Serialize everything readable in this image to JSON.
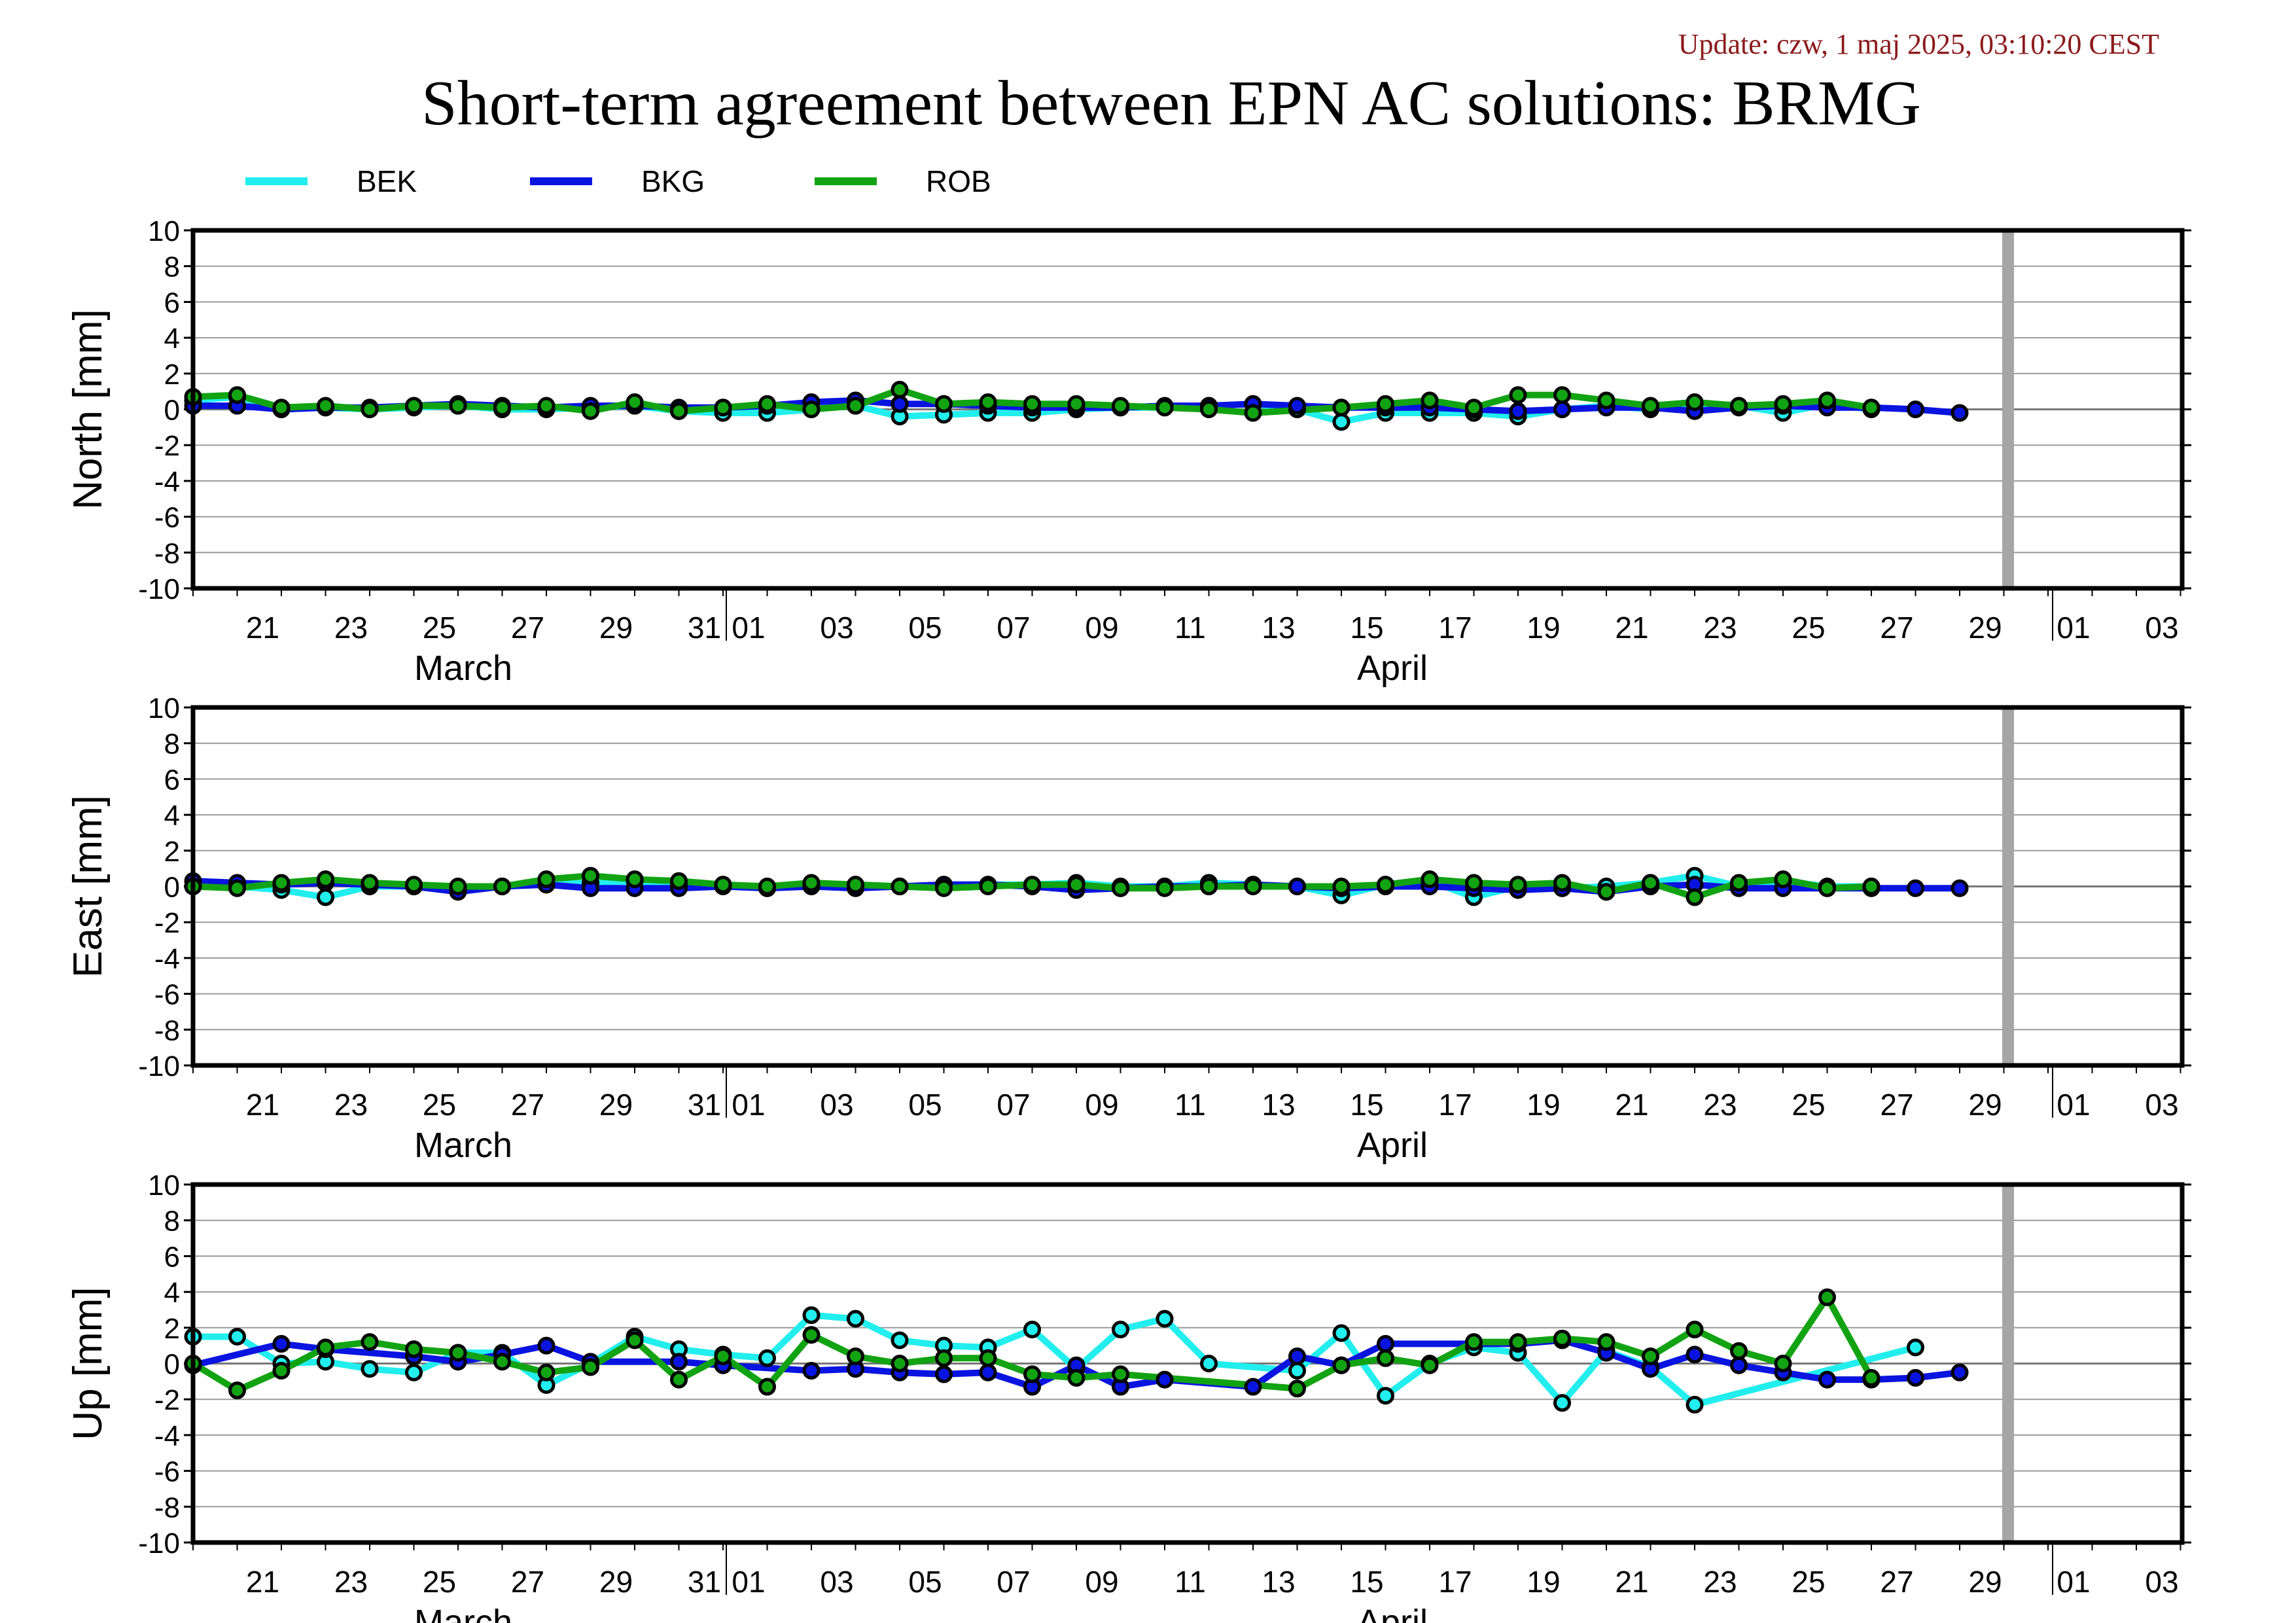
{
  "header": {
    "update_text": "Update: czw, 1 maj 2025, 03:10:20 CEST",
    "update_color": "#8b1a1a",
    "title": "Short-term agreement between EPN AC solutions: BRMG"
  },
  "legend": [
    {
      "name": "BEK",
      "color": "#22eeee"
    },
    {
      "name": "BKG",
      "color": "#0a14e0"
    },
    {
      "name": "ROB",
      "color": "#12a312"
    }
  ],
  "chart_data": [
    {
      "type": "line",
      "ylabel": "North [mm]",
      "ylim": [
        -10,
        10
      ],
      "yticks": [
        "10",
        "8",
        "6",
        "4",
        "2",
        "0",
        "-2",
        "-4",
        "-6",
        "-8",
        "-10"
      ],
      "x_tick_labels": [
        "21",
        "23",
        "25",
        "27",
        "29",
        "31",
        "01",
        "03",
        "05",
        "07",
        "09",
        "11",
        "13",
        "15",
        "17",
        "19",
        "21",
        "23",
        "25",
        "27",
        "29",
        "01",
        "03"
      ],
      "month_labels": [
        "March",
        "April"
      ],
      "x_dates": [
        "2025-03-20",
        "2025-03-21",
        "2025-03-22",
        "2025-03-23",
        "2025-03-24",
        "2025-03-25",
        "2025-03-26",
        "2025-03-27",
        "2025-03-28",
        "2025-03-29",
        "2025-03-30",
        "2025-03-31",
        "2025-04-01",
        "2025-04-02",
        "2025-04-03",
        "2025-04-04",
        "2025-04-05",
        "2025-04-06",
        "2025-04-07",
        "2025-04-08",
        "2025-04-09",
        "2025-04-10",
        "2025-04-11",
        "2025-04-12",
        "2025-04-13",
        "2025-04-14",
        "2025-04-15",
        "2025-04-16",
        "2025-04-17",
        "2025-04-18",
        "2025-04-19",
        "2025-04-20",
        "2025-04-21",
        "2025-04-22",
        "2025-04-23",
        "2025-04-24",
        "2025-04-25",
        "2025-04-26",
        "2025-04-27",
        "2025-04-28",
        "2025-04-29"
      ],
      "series": [
        {
          "name": "BEK",
          "values": [
            0.5,
            0.7,
            0.0,
            0.1,
            0.0,
            0.1,
            0.2,
            0.0,
            0.0,
            0.1,
            0.2,
            -0.1,
            -0.2,
            -0.2,
            0.0,
            0.2,
            -0.4,
            -0.3,
            -0.2,
            -0.2,
            0.0,
            0.1,
            0.1,
            0.2,
            0.3,
            0.0,
            -0.7,
            -0.2,
            -0.2,
            -0.2,
            -0.4,
            0.0,
            0.2,
            0.0,
            0.3,
            0.2,
            -0.2,
            0.3,
            0.0,
            null,
            null
          ]
        },
        {
          "name": "BKG",
          "values": [
            0.2,
            0.2,
            0.0,
            0.1,
            0.1,
            0.2,
            0.3,
            0.2,
            0.1,
            0.2,
            0.2,
            0.1,
            0.1,
            0.2,
            0.4,
            0.5,
            0.3,
            0.3,
            0.2,
            0.1,
            0.1,
            0.1,
            0.2,
            0.2,
            0.3,
            0.2,
            0.1,
            0.1,
            0.1,
            0.0,
            -0.1,
            0.0,
            0.1,
            0.1,
            -0.1,
            0.1,
            0.2,
            0.1,
            0.1,
            0.0,
            -0.2
          ]
        },
        {
          "name": "ROB",
          "values": [
            0.7,
            0.8,
            0.1,
            0.2,
            0.0,
            0.2,
            0.2,
            0.1,
            0.2,
            -0.1,
            0.4,
            -0.1,
            0.1,
            0.3,
            0.0,
            0.2,
            1.1,
            0.3,
            0.4,
            0.3,
            0.3,
            0.2,
            0.1,
            0.0,
            -0.2,
            null,
            0.1,
            0.3,
            0.5,
            0.1,
            0.8,
            0.8,
            0.5,
            0.2,
            0.4,
            0.2,
            0.3,
            0.5,
            0.1,
            null,
            null
          ]
        }
      ]
    },
    {
      "type": "line",
      "ylabel": "East [mm]",
      "ylim": [
        -10,
        10
      ],
      "yticks": [
        "10",
        "8",
        "6",
        "4",
        "2",
        "0",
        "-2",
        "-4",
        "-6",
        "-8",
        "-10"
      ],
      "x_tick_labels": [
        "21",
        "23",
        "25",
        "27",
        "29",
        "31",
        "01",
        "03",
        "05",
        "07",
        "09",
        "11",
        "13",
        "15",
        "17",
        "19",
        "21",
        "23",
        "25",
        "27",
        "29",
        "01",
        "03"
      ],
      "month_labels": [
        "March",
        "April"
      ],
      "x_dates": [
        "2025-03-20",
        "2025-03-21",
        "2025-03-22",
        "2025-03-23",
        "2025-03-24",
        "2025-03-25",
        "2025-03-26",
        "2025-03-27",
        "2025-03-28",
        "2025-03-29",
        "2025-03-30",
        "2025-03-31",
        "2025-04-01",
        "2025-04-02",
        "2025-04-03",
        "2025-04-04",
        "2025-04-05",
        "2025-04-06",
        "2025-04-07",
        "2025-04-08",
        "2025-04-09",
        "2025-04-10",
        "2025-04-11",
        "2025-04-12",
        "2025-04-13",
        "2025-04-14",
        "2025-04-15",
        "2025-04-16",
        "2025-04-17",
        "2025-04-18",
        "2025-04-19",
        "2025-04-20",
        "2025-04-21",
        "2025-04-22",
        "2025-04-23",
        "2025-04-24",
        "2025-04-25",
        "2025-04-26",
        "2025-04-27",
        "2025-04-28",
        "2025-04-29"
      ],
      "series": [
        {
          "name": "BEK",
          "values": [
            0.0,
            0.0,
            -0.2,
            -0.6,
            0.0,
            0.0,
            -0.1,
            0.0,
            0.1,
            0.2,
            0.3,
            0.1,
            0.1,
            -0.1,
            0.1,
            0.1,
            0.0,
            0.1,
            0.1,
            0.1,
            0.2,
            0.0,
            0.0,
            0.2,
            0.1,
            0.0,
            -0.5,
            0.1,
            0.3,
            -0.6,
            0.0,
            -0.1,
            0.0,
            0.2,
            0.6,
            0.0,
            0.3,
            0.0,
            0.0,
            null,
            null
          ]
        },
        {
          "name": "BKG",
          "values": [
            0.3,
            0.2,
            0.1,
            0.2,
            0.1,
            0.0,
            -0.3,
            0.0,
            0.1,
            -0.1,
            -0.1,
            -0.1,
            0.0,
            -0.1,
            0.0,
            -0.1,
            0.0,
            0.1,
            0.1,
            0.0,
            -0.2,
            -0.1,
            0.0,
            0.0,
            0.1,
            0.0,
            -0.1,
            0.0,
            0.0,
            -0.1,
            -0.2,
            -0.1,
            -0.3,
            0.0,
            0.1,
            -0.1,
            -0.1,
            -0.1,
            -0.1,
            -0.1,
            -0.1
          ]
        },
        {
          "name": "ROB",
          "values": [
            0.0,
            -0.1,
            0.2,
            0.4,
            0.2,
            0.1,
            0.0,
            0.0,
            0.4,
            0.6,
            0.4,
            0.3,
            0.1,
            0.0,
            0.2,
            0.1,
            0.0,
            -0.1,
            0.0,
            0.1,
            0.1,
            -0.1,
            -0.1,
            0.0,
            0.0,
            null,
            0.0,
            0.1,
            0.4,
            0.2,
            0.1,
            0.2,
            -0.3,
            0.2,
            -0.6,
            0.2,
            0.4,
            -0.1,
            0.0,
            null,
            null
          ]
        }
      ]
    },
    {
      "type": "line",
      "ylabel": "Up [mm]",
      "ylim": [
        -10,
        10
      ],
      "yticks": [
        "10",
        "8",
        "6",
        "4",
        "2",
        "0",
        "-2",
        "-4",
        "-6",
        "-8",
        "-10"
      ],
      "x_tick_labels": [
        "21",
        "23",
        "25",
        "27",
        "29",
        "31",
        "01",
        "03",
        "05",
        "07",
        "09",
        "11",
        "13",
        "15",
        "17",
        "19",
        "21",
        "23",
        "25",
        "27",
        "29",
        "01",
        "03"
      ],
      "month_labels": [
        "March",
        "April"
      ],
      "x_dates": [
        "2025-03-20",
        "2025-03-21",
        "2025-03-22",
        "2025-03-23",
        "2025-03-24",
        "2025-03-25",
        "2025-03-26",
        "2025-03-27",
        "2025-03-28",
        "2025-03-29",
        "2025-03-30",
        "2025-03-31",
        "2025-04-01",
        "2025-04-02",
        "2025-04-03",
        "2025-04-04",
        "2025-04-05",
        "2025-04-06",
        "2025-04-07",
        "2025-04-08",
        "2025-04-09",
        "2025-04-10",
        "2025-04-11",
        "2025-04-12",
        "2025-04-13",
        "2025-04-14",
        "2025-04-15",
        "2025-04-16",
        "2025-04-17",
        "2025-04-18",
        "2025-04-19",
        "2025-04-20",
        "2025-04-21",
        "2025-04-22",
        "2025-04-23",
        "2025-04-24",
        "2025-04-25",
        "2025-04-26",
        "2025-04-27",
        "2025-04-28",
        "2025-04-29"
      ],
      "series": [
        {
          "name": "BEK",
          "values": [
            1.5,
            1.5,
            0.0,
            0.1,
            -0.3,
            -0.5,
            0.6,
            0.6,
            -1.2,
            0.0,
            1.5,
            0.8,
            0.5,
            0.3,
            2.7,
            2.5,
            1.3,
            1.0,
            0.9,
            1.9,
            -0.3,
            1.9,
            2.5,
            0.0,
            null,
            -0.4,
            1.7,
            -1.8,
            0.0,
            0.9,
            0.6,
            -2.2,
            0.7,
            -0.2,
            -2.3,
            null,
            null,
            null,
            null,
            0.9,
            null
          ]
        },
        {
          "name": "BKG",
          "values": [
            -0.1,
            null,
            1.1,
            0.8,
            null,
            0.4,
            0.1,
            0.5,
            1.0,
            0.1,
            null,
            0.1,
            -0.1,
            null,
            -0.4,
            -0.3,
            -0.5,
            -0.6,
            -0.5,
            -1.3,
            -0.1,
            -1.3,
            -0.9,
            null,
            -1.3,
            0.4,
            -0.1,
            1.1,
            null,
            null,
            1.1,
            1.3,
            0.6,
            -0.3,
            0.5,
            -0.1,
            -0.5,
            -0.9,
            -0.9,
            -0.8,
            -0.5
          ]
        },
        {
          "name": "ROB",
          "values": [
            0.0,
            -1.5,
            -0.4,
            0.9,
            1.2,
            0.8,
            0.6,
            0.1,
            -0.5,
            -0.2,
            1.3,
            -0.9,
            0.4,
            -1.3,
            1.6,
            0.4,
            0.0,
            0.3,
            0.3,
            -0.6,
            -0.8,
            -0.6,
            null,
            null,
            null,
            -1.4,
            -0.1,
            0.3,
            -0.1,
            1.2,
            1.2,
            1.4,
            1.2,
            0.4,
            1.9,
            0.7,
            0.0,
            3.7,
            -0.8,
            null,
            null
          ]
        }
      ]
    }
  ]
}
